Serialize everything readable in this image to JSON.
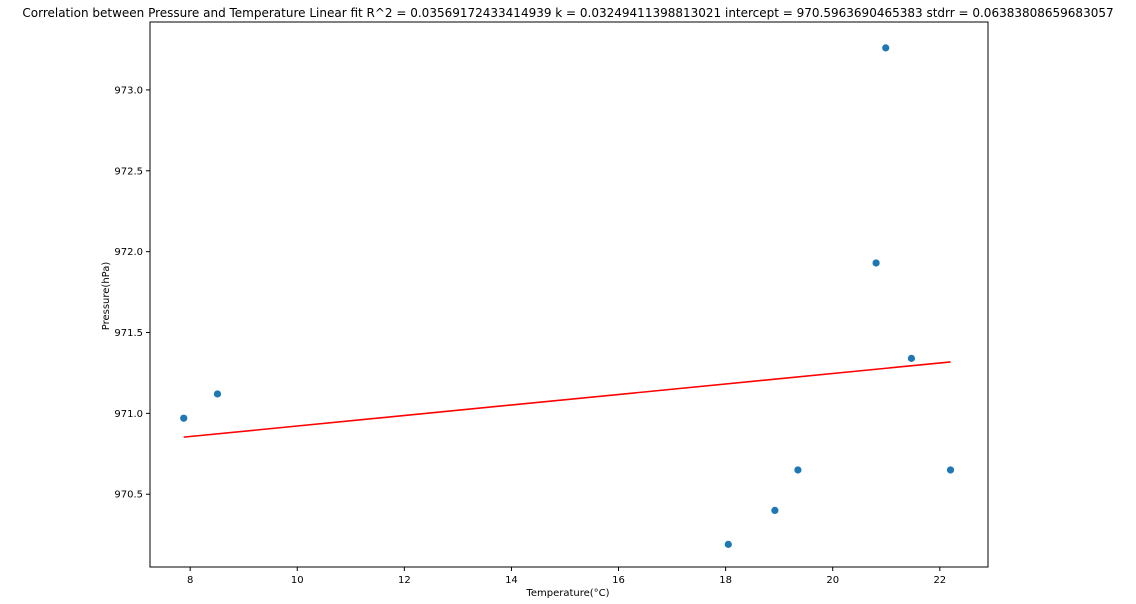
{
  "chart_data": {
    "type": "scatter",
    "title": "Correlation between Pressure and Temperature  Linear fit    R^2 = 0.03569172433414939  k = 0.03249411398813021  intercept = 970.5963690465383  stdrr = 0.06383808659683057",
    "xlabel": "Temperature(°C)",
    "ylabel": "Pressure(hPa)",
    "xlim": [
      7.25,
      22.9
    ],
    "ylim": [
      970.05,
      973.42
    ],
    "x_ticks": [
      8,
      10,
      12,
      14,
      16,
      18,
      20,
      22
    ],
    "x_tick_labels": [
      "8",
      "10",
      "12",
      "14",
      "16",
      "18",
      "20",
      "22"
    ],
    "y_ticks": [
      970.5,
      971.0,
      971.5,
      972.0,
      972.5,
      973.0
    ],
    "y_tick_labels": [
      "970.5",
      "971.0",
      "971.5",
      "972.0",
      "972.5",
      "973.0"
    ],
    "grid": false,
    "series": [
      {
        "type": "scatter",
        "color": "#1f77b4",
        "points": [
          {
            "x": 7.88,
            "y": 970.97
          },
          {
            "x": 8.51,
            "y": 971.12
          },
          {
            "x": 18.05,
            "y": 970.19
          },
          {
            "x": 18.92,
            "y": 970.4
          },
          {
            "x": 19.35,
            "y": 970.65
          },
          {
            "x": 20.81,
            "y": 971.93
          },
          {
            "x": 20.99,
            "y": 973.26
          },
          {
            "x": 21.47,
            "y": 971.34
          },
          {
            "x": 22.2,
            "y": 970.65
          }
        ]
      },
      {
        "type": "line",
        "color": "#ff0000",
        "points": [
          {
            "x": 7.88,
            "y": 970.853
          },
          {
            "x": 22.2,
            "y": 971.318
          }
        ]
      }
    ]
  }
}
